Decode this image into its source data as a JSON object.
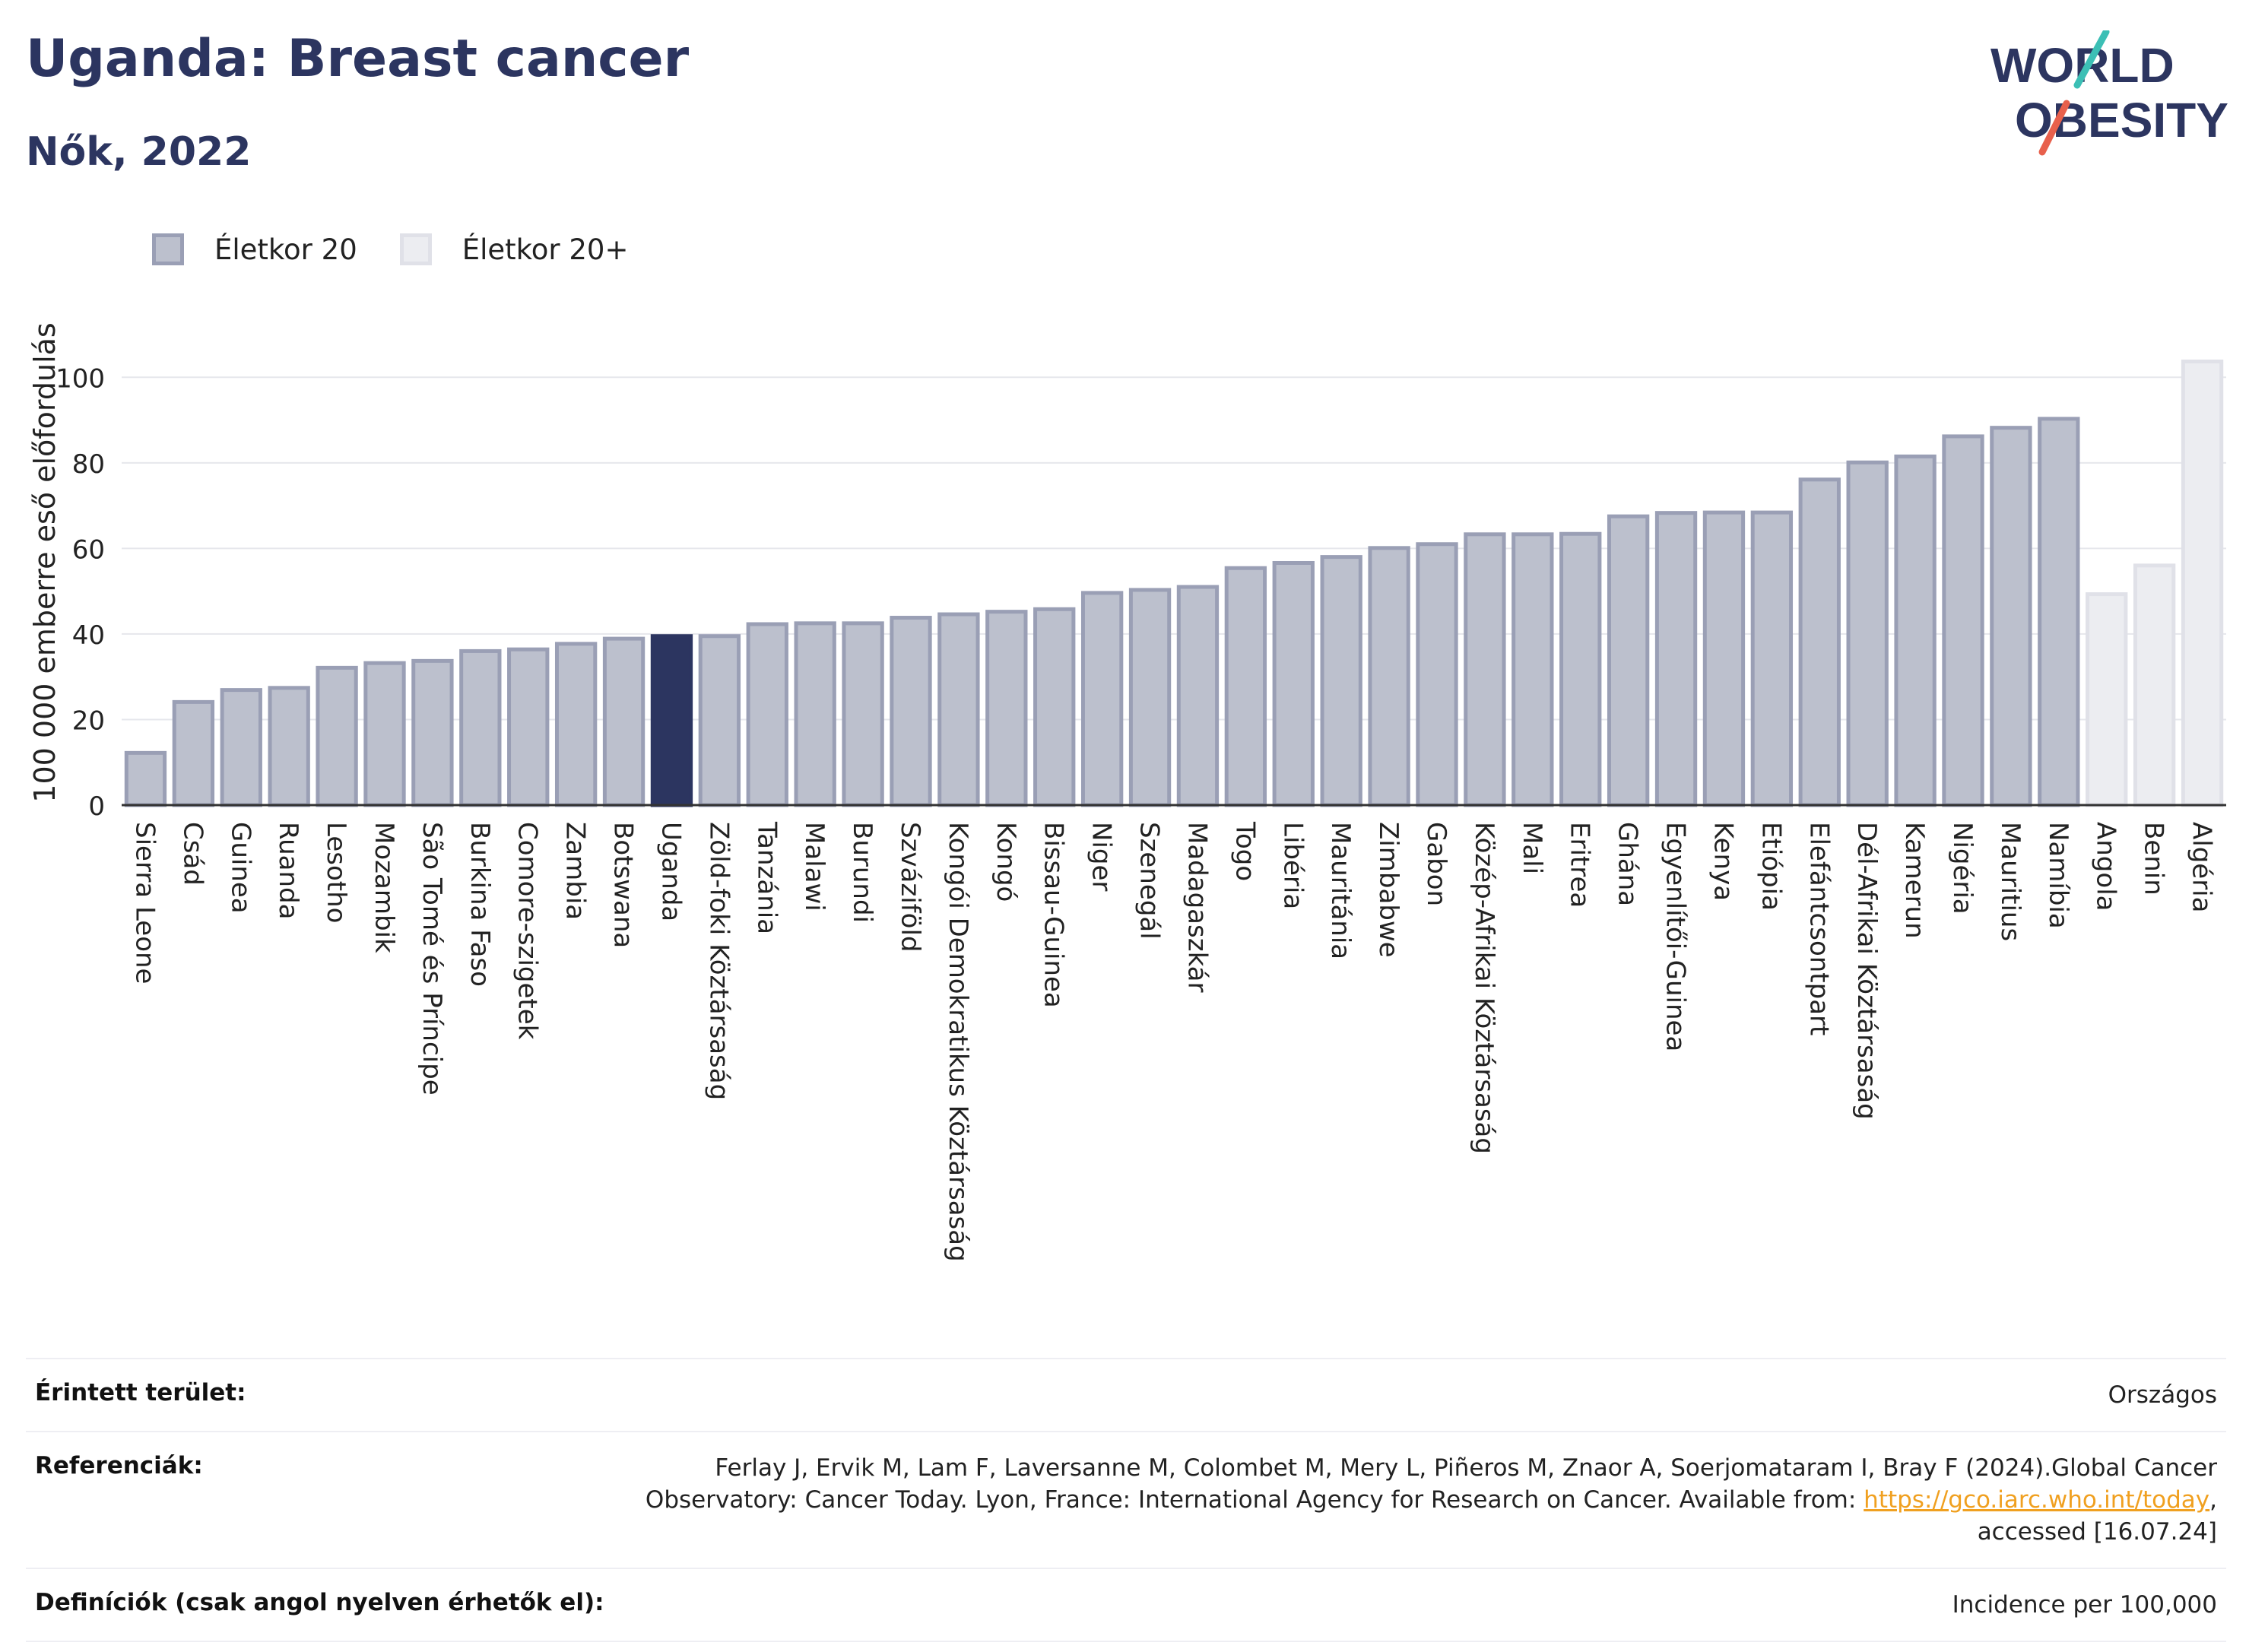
{
  "header": {
    "title": "Uganda: Breast cancer",
    "subtitle": "Nők, 2022"
  },
  "logo": {
    "line1": "WORLD",
    "line2": "OBESITY",
    "accent_teal": "#3cbfb5",
    "accent_red": "#e8604c",
    "text_color": "#2c3560"
  },
  "colors": {
    "bar_20": "#bcc0cd",
    "bar_20_border": "#9a9fb5",
    "bar_20plus": "#ecedf1",
    "bar_20plus_border": "#e0e1e8",
    "highlight": "#2c3560",
    "grid": "#e6e7ec"
  },
  "legend": [
    {
      "label": "Életkor 20",
      "key": "age20"
    },
    {
      "label": "Életkor 20+",
      "key": "age20plus"
    }
  ],
  "chart_data": {
    "type": "bar",
    "ylabel": "100 000 emberre eső előfordulás",
    "ylim": [
      0,
      110
    ],
    "yticks": [
      0,
      20,
      40,
      60,
      80,
      100
    ],
    "grid": true,
    "legend_position": "top-left",
    "highlight": "Uganda",
    "categories": [
      "Sierra Leone",
      "Csád",
      "Guinea",
      "Ruanda",
      "Lesotho",
      "Mozambik",
      "São Tomé és Príncipe",
      "Burkina Faso",
      "Comore-szigetek",
      "Zambia",
      "Botswana",
      "Uganda",
      "Zöld-foki Köztársaság",
      "Tanzánia",
      "Malawi",
      "Burundi",
      "Szváziföld",
      "Kongói Demokratikus Köztársaság",
      "Kongó",
      "Bissau-Guinea",
      "Niger",
      "Szenegál",
      "Madagaszkár",
      "Togo",
      "Libéria",
      "Mauritánia",
      "Zimbabwe",
      "Gabon",
      "Közép-Afrikai Köztársaság",
      "Mali",
      "Eritrea",
      "Ghána",
      "Egyenlítői-Guinea",
      "Kenya",
      "Etiópia",
      "Elefántcsontpart",
      "Dél-Afrikai Köztársaság",
      "Kamerun",
      "Nigéria",
      "Mauritius",
      "Namíbia",
      "Angola",
      "Benin",
      "Algéria"
    ],
    "values": [
      12.2,
      24.1,
      26.9,
      27.4,
      32.1,
      33.2,
      33.7,
      36.0,
      36.4,
      37.7,
      38.9,
      39.5,
      39.5,
      42.3,
      42.5,
      42.5,
      43.8,
      44.6,
      45.2,
      45.8,
      49.6,
      50.3,
      51.0,
      55.4,
      56.6,
      58.0,
      60.1,
      61.0,
      63.3,
      63.3,
      63.4,
      67.5,
      68.3,
      68.4,
      68.4,
      76.1,
      80.1,
      81.5,
      86.2,
      88.2,
      90.3,
      49.3,
      56.0,
      103.7
    ],
    "groups": [
      "age20",
      "age20",
      "age20",
      "age20",
      "age20",
      "age20",
      "age20",
      "age20",
      "age20",
      "age20",
      "age20",
      "age20",
      "age20",
      "age20",
      "age20",
      "age20",
      "age20",
      "age20",
      "age20",
      "age20",
      "age20",
      "age20",
      "age20",
      "age20",
      "age20",
      "age20",
      "age20",
      "age20",
      "age20",
      "age20",
      "age20",
      "age20",
      "age20",
      "age20",
      "age20",
      "age20",
      "age20",
      "age20",
      "age20",
      "age20",
      "age20",
      "age20plus",
      "age20plus",
      "age20plus"
    ]
  },
  "info": {
    "area_label": "Érintett terület:",
    "area_value": "Országos",
    "ref_label": "Referenciák:",
    "ref_line1": "Ferlay J, Ervik M, Lam F, Laversanne M, Colombet M, Mery L, Piñeros M, Znaor A, Soerjomataram I, Bray F (2024).Global Cancer",
    "ref_line2": "Observatory: Cancer Today. Lyon, France: International Agency for Research on Cancer. Available from: ",
    "ref_link": "https://gco.iarc.who.int/today",
    "ref_line2_end": ",",
    "ref_line3": "accessed [16.07.24]",
    "def_label": "Definíciók (csak angol nyelven érhetők el):",
    "def_value": "Incidence per 100,000"
  }
}
